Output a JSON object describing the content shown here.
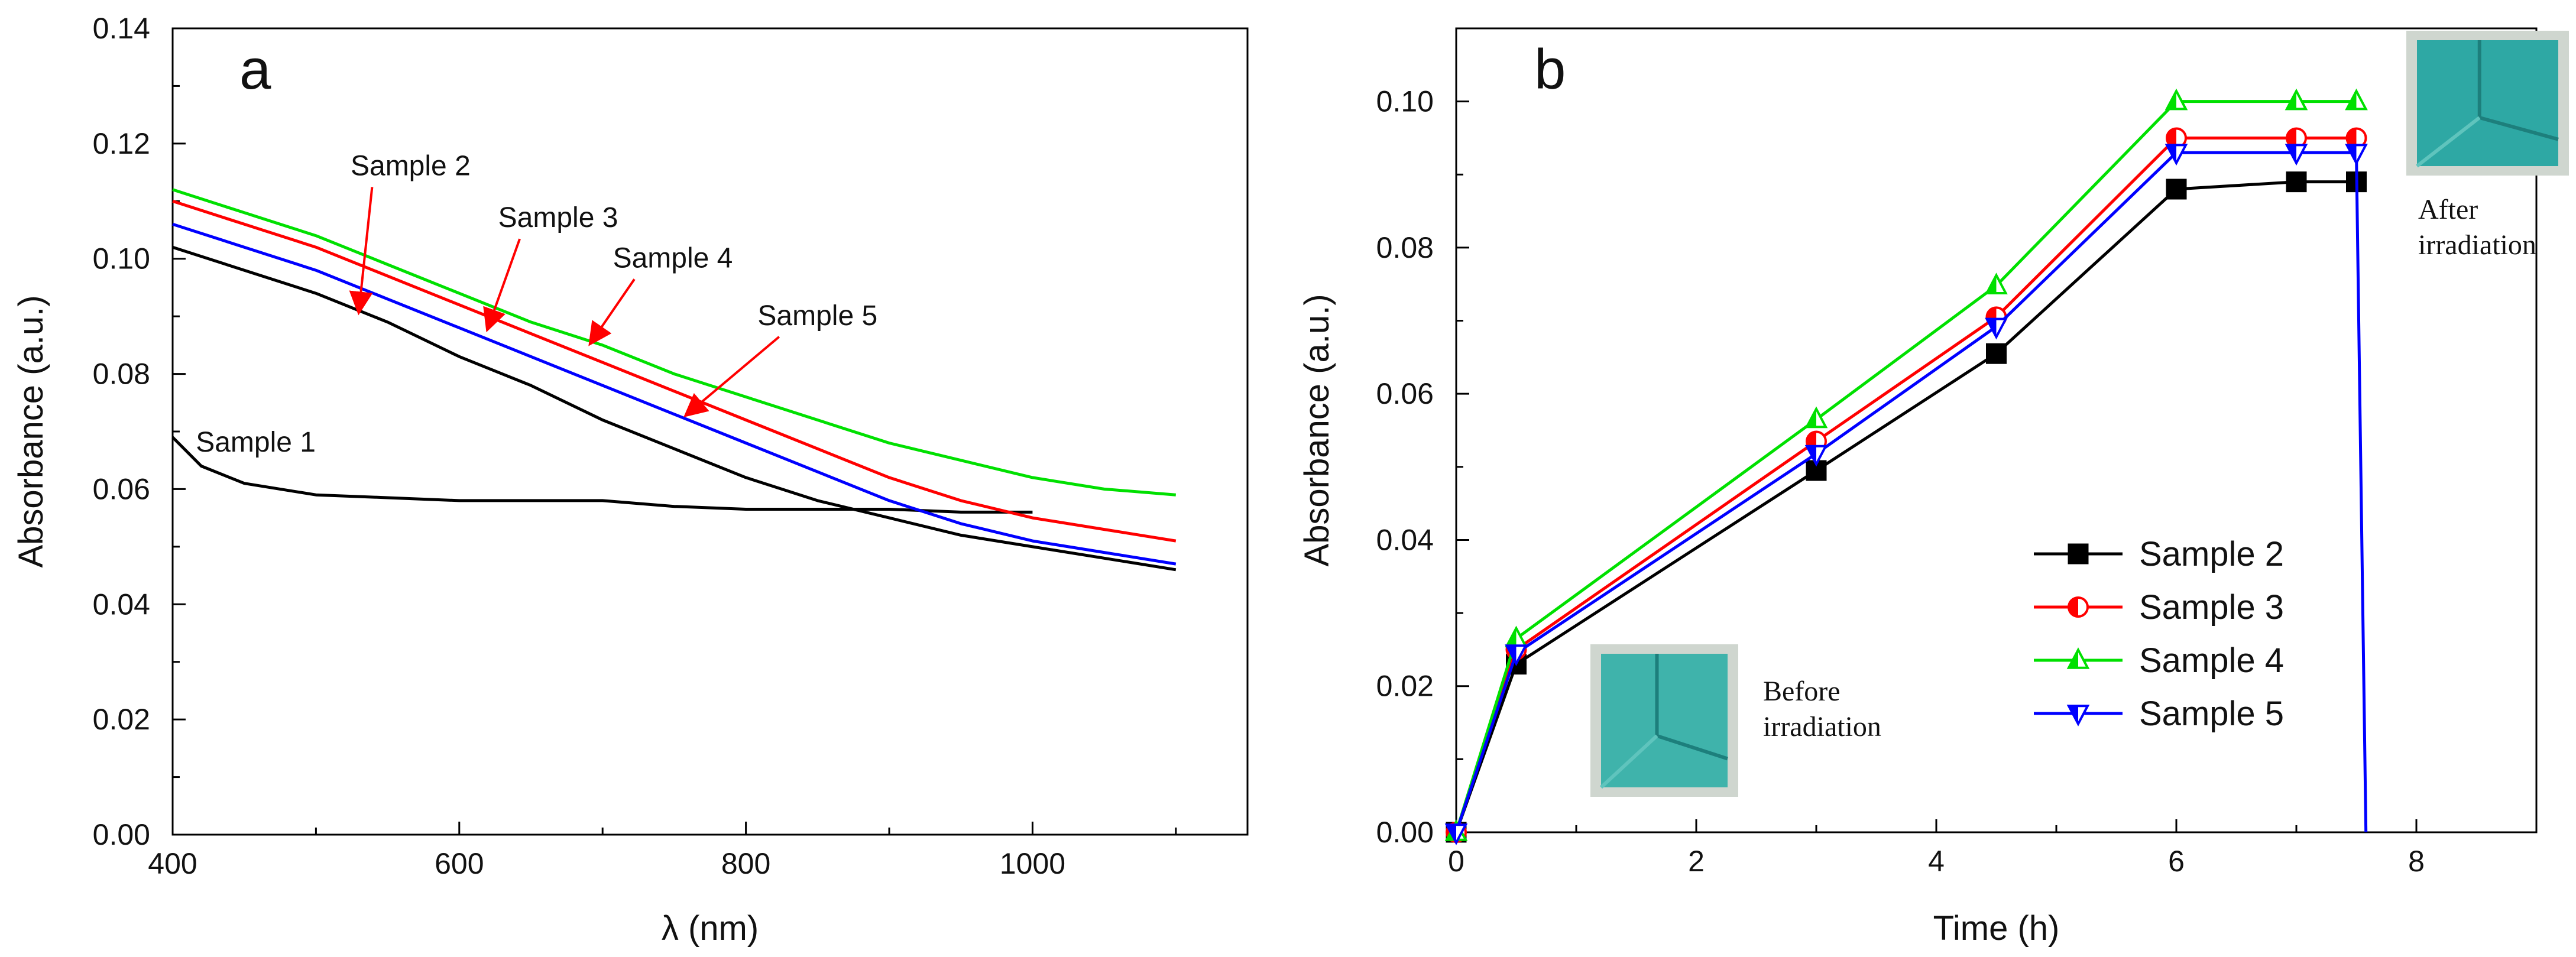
{
  "chart_data": [
    {
      "type": "line",
      "panel_label": "a",
      "xlabel": "λ (nm)",
      "ylabel": "Absorbance (a.u.)",
      "xlim": [
        400,
        1150
      ],
      "ylim": [
        0,
        0.14
      ],
      "xticks": [
        400,
        600,
        800,
        1000
      ],
      "yticks": [
        "0.00",
        "0.02",
        "0.04",
        "0.06",
        "0.08",
        "0.10",
        "0.12",
        "0.14"
      ],
      "grid": false,
      "legend": "none",
      "series": [
        {
          "name": "Sample 1",
          "color": "#000000",
          "points": [
            [
              400,
              0.069
            ],
            [
              420,
              0.064
            ],
            [
              450,
              0.061
            ],
            [
              500,
              0.059
            ],
            [
              550,
              0.0585
            ],
            [
              600,
              0.058
            ],
            [
              650,
              0.058
            ],
            [
              700,
              0.058
            ],
            [
              750,
              0.057
            ],
            [
              800,
              0.0565
            ],
            [
              850,
              0.0565
            ],
            [
              900,
              0.0565
            ],
            [
              950,
              0.056
            ],
            [
              1000,
              0.056
            ]
          ]
        },
        {
          "name": "Sample 2",
          "color": "#000000",
          "points": [
            [
              400,
              0.102
            ],
            [
              450,
              0.098
            ],
            [
              500,
              0.094
            ],
            [
              550,
              0.089
            ],
            [
              600,
              0.083
            ],
            [
              650,
              0.078
            ],
            [
              700,
              0.072
            ],
            [
              750,
              0.067
            ],
            [
              800,
              0.062
            ],
            [
              850,
              0.058
            ],
            [
              900,
              0.055
            ],
            [
              950,
              0.052
            ],
            [
              1000,
              0.05
            ],
            [
              1050,
              0.048
            ],
            [
              1100,
              0.046
            ]
          ]
        },
        {
          "name": "Sample 3",
          "color": "#ff0000",
          "points": [
            [
              400,
              0.11
            ],
            [
              450,
              0.106
            ],
            [
              500,
              0.102
            ],
            [
              550,
              0.097
            ],
            [
              600,
              0.092
            ],
            [
              650,
              0.087
            ],
            [
              700,
              0.082
            ],
            [
              750,
              0.077
            ],
            [
              800,
              0.072
            ],
            [
              850,
              0.067
            ],
            [
              900,
              0.062
            ],
            [
              950,
              0.058
            ],
            [
              1000,
              0.055
            ],
            [
              1050,
              0.053
            ],
            [
              1100,
              0.051
            ]
          ]
        },
        {
          "name": "Sample 4",
          "color": "#00e000",
          "points": [
            [
              400,
              0.112
            ],
            [
              450,
              0.108
            ],
            [
              500,
              0.104
            ],
            [
              550,
              0.099
            ],
            [
              600,
              0.094
            ],
            [
              650,
              0.089
            ],
            [
              700,
              0.085
            ],
            [
              750,
              0.08
            ],
            [
              800,
              0.076
            ],
            [
              850,
              0.072
            ],
            [
              900,
              0.068
            ],
            [
              950,
              0.065
            ],
            [
              1000,
              0.062
            ],
            [
              1050,
              0.06
            ],
            [
              1100,
              0.059
            ]
          ]
        },
        {
          "name": "Sample 5",
          "color": "#0000ff",
          "points": [
            [
              400,
              0.106
            ],
            [
              450,
              0.102
            ],
            [
              500,
              0.098
            ],
            [
              550,
              0.093
            ],
            [
              600,
              0.088
            ],
            [
              650,
              0.083
            ],
            [
              700,
              0.078
            ],
            [
              750,
              0.073
            ],
            [
              800,
              0.068
            ],
            [
              850,
              0.063
            ],
            [
              900,
              0.058
            ],
            [
              950,
              0.054
            ],
            [
              1000,
              0.051
            ],
            [
              1050,
              0.049
            ],
            [
              1100,
              0.047
            ]
          ]
        }
      ],
      "annotations": [
        {
          "text": "Sample 1",
          "at": [
            458,
            0.0665
          ]
        },
        {
          "text": "Sample 2",
          "at": [
            566,
            0.1145
          ],
          "arrow_to": [
            530,
            0.091
          ]
        },
        {
          "text": "Sample 3",
          "at": [
            669,
            0.1055
          ],
          "arrow_to": [
            620,
            0.088
          ]
        },
        {
          "text": "Sample 4",
          "at": [
            749,
            0.0985
          ],
          "arrow_to": [
            692,
            0.0855
          ]
        },
        {
          "text": "Sample 5",
          "at": [
            850,
            0.0885
          ],
          "arrow_to": [
            759,
            0.073
          ]
        }
      ]
    },
    {
      "type": "line",
      "panel_label": "b",
      "xlabel": "Time (h)",
      "ylabel": "Absorbance (a.u.)",
      "xlim": [
        0,
        9
      ],
      "ylim": [
        0,
        0.11
      ],
      "xticks": [
        0,
        2,
        4,
        6,
        8
      ],
      "yticks": [
        "0.00",
        "0.02",
        "0.04",
        "0.06",
        "0.08",
        "0.10"
      ],
      "grid": false,
      "legend": "lower-right",
      "series": [
        {
          "name": "Sample 2",
          "color": "#000000",
          "marker": "square",
          "x": [
            0,
            0.5,
            3,
            4.5,
            6,
            7,
            7.5
          ],
          "y": [
            0,
            0.023,
            0.0495,
            0.0655,
            0.088,
            0.089,
            0.089
          ]
        },
        {
          "name": "Sample 3",
          "color": "#ff0000",
          "marker": "half-circle",
          "x": [
            0,
            0.5,
            3,
            4.5,
            6,
            7,
            7.5
          ],
          "y": [
            0,
            0.025,
            0.0535,
            0.0705,
            0.095,
            0.095,
            0.095
          ]
        },
        {
          "name": "Sample 4",
          "color": "#00e000",
          "marker": "triangle-up",
          "x": [
            0,
            0.5,
            3,
            4.5,
            6,
            7,
            7.5
          ],
          "y": [
            0,
            0.0265,
            0.0565,
            0.0748,
            0.1,
            0.1,
            0.1
          ]
        },
        {
          "name": "Sample 5",
          "color": "#0000ff",
          "marker": "triangle-down",
          "x": [
            0,
            0.5,
            3,
            4.5,
            6,
            7,
            7.5,
            7.58
          ],
          "y": [
            0,
            0.0245,
            0.0518,
            0.0692,
            0.093,
            0.093,
            0.093,
            0.0
          ]
        }
      ],
      "photos": [
        {
          "caption_lines": [
            "Before",
            "irradiation"
          ],
          "color": "#3fb3ab"
        },
        {
          "caption_lines": [
            "After",
            "irradiation"
          ],
          "color": "#2ea8a4"
        }
      ]
    }
  ]
}
